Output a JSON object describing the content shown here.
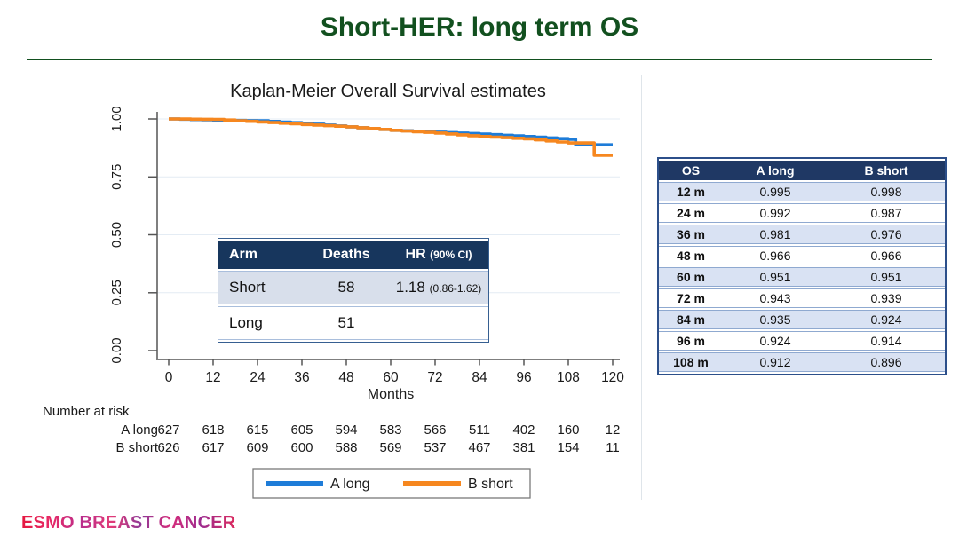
{
  "header": {
    "title": "Short-HER: long term OS"
  },
  "chart_data": {
    "type": "line",
    "subtype": "kaplan-meier-step",
    "title": "Kaplan-Meier Overall Survival estimates",
    "xlabel": "Months",
    "xlim": [
      0,
      120
    ],
    "ylim": [
      0,
      1
    ],
    "grid": true,
    "x_ticks": [
      0,
      12,
      24,
      36,
      48,
      60,
      72,
      84,
      96,
      108,
      120
    ],
    "y_ticks": [
      {
        "v": 1.0,
        "label": "1.00"
      },
      {
        "v": 0.75,
        "label": "0.75"
      },
      {
        "v": 0.5,
        "label": "0.50"
      },
      {
        "v": 0.25,
        "label": "0.25"
      },
      {
        "v": 0.0,
        "label": "0.00"
      }
    ],
    "series": [
      {
        "name": "A long",
        "color": "#1E7CD8",
        "points": [
          [
            0,
            1.0
          ],
          [
            12,
            0.995
          ],
          [
            24,
            0.992
          ],
          [
            36,
            0.981
          ],
          [
            48,
            0.966
          ],
          [
            60,
            0.951
          ],
          [
            72,
            0.943
          ],
          [
            84,
            0.935
          ],
          [
            96,
            0.924
          ],
          [
            108,
            0.912
          ],
          [
            110,
            0.888
          ],
          [
            120,
            0.888
          ]
        ]
      },
      {
        "name": "B short",
        "color": "#F6871F",
        "points": [
          [
            0,
            1.0
          ],
          [
            12,
            0.998
          ],
          [
            24,
            0.987
          ],
          [
            36,
            0.976
          ],
          [
            48,
            0.966
          ],
          [
            60,
            0.951
          ],
          [
            72,
            0.939
          ],
          [
            84,
            0.924
          ],
          [
            96,
            0.914
          ],
          [
            108,
            0.896
          ],
          [
            115,
            0.843
          ],
          [
            120,
            0.843
          ]
        ]
      }
    ],
    "number_at_risk": {
      "label": "Number at risk",
      "rows": [
        {
          "name": "A long",
          "values": [
            627,
            618,
            615,
            605,
            594,
            583,
            566,
            511,
            402,
            160,
            12
          ]
        },
        {
          "name": "B short",
          "values": [
            626,
            617,
            609,
            600,
            588,
            569,
            537,
            467,
            381,
            154,
            11
          ]
        }
      ]
    },
    "legend": {
      "position": "bottom",
      "items": [
        {
          "label": "A long",
          "color": "#1E7CD8"
        },
        {
          "label": "B short",
          "color": "#F6871F"
        }
      ]
    }
  },
  "inset_table": {
    "columns": {
      "arm": "Arm",
      "deaths": "Deaths",
      "hr": "HR",
      "hr_note": "(90% CI)"
    },
    "rows": [
      {
        "arm": "Short",
        "deaths": "58",
        "hr": "1.18",
        "hr_ci": "(0.86-1.62)"
      },
      {
        "arm": "Long",
        "deaths": "51",
        "hr": "",
        "hr_ci": ""
      }
    ]
  },
  "side_table": {
    "headers": [
      "OS",
      "A long",
      "B short"
    ],
    "rows": [
      [
        "12 m",
        "0.995",
        "0.998"
      ],
      [
        "24 m",
        "0.992",
        "0.987"
      ],
      [
        "36 m",
        "0.981",
        "0.976"
      ],
      [
        "48 m",
        "0.966",
        "0.966"
      ],
      [
        "60 m",
        "0.951",
        "0.951"
      ],
      [
        "72 m",
        "0.943",
        "0.939"
      ],
      [
        "84 m",
        "0.935",
        "0.924"
      ],
      [
        "96 m",
        "0.924",
        "0.914"
      ],
      [
        "108 m",
        "0.912",
        "0.896"
      ]
    ]
  },
  "footer": {
    "logo": "ESMO BREAST CANCER"
  },
  "colors": {
    "title_green": "#12501F",
    "curve_blue": "#1E7CD8",
    "curve_orange": "#F6871F",
    "table_header_navy": "#1F3864",
    "row_light_blue": "#D9E2F3",
    "logo_pink": "#D6216E"
  }
}
